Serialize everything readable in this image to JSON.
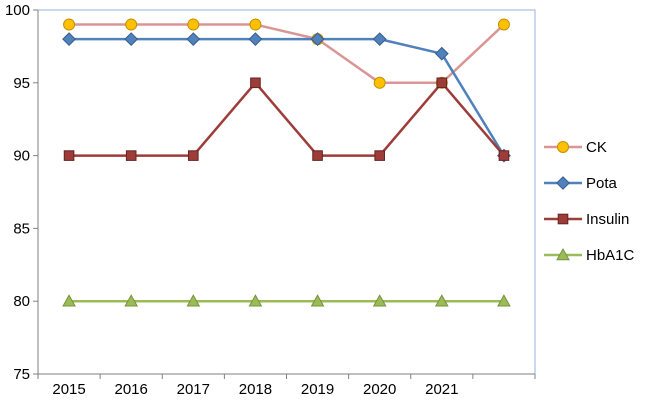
{
  "chart_data": {
    "type": "line",
    "title": "",
    "xlabel": "",
    "ylabel": "",
    "categories": [
      "2015",
      "2016",
      "2017",
      "2018",
      "2019",
      "2020",
      "2021",
      ""
    ],
    "series": [
      {
        "name": "CK",
        "values": [
          99,
          99,
          99,
          99,
          98,
          95,
          95,
          99
        ],
        "line_color": "#d99694",
        "marker": "circle",
        "marker_fill": "#ffc000",
        "marker_stroke": "#bf9000"
      },
      {
        "name": "Pota",
        "values": [
          98,
          98,
          98,
          98,
          98,
          98,
          97,
          90
        ],
        "line_color": "#4f81bd",
        "marker": "diamond",
        "marker_fill": "#4f81bd",
        "marker_stroke": "#385d8a"
      },
      {
        "name": "Insulin",
        "values": [
          90,
          90,
          90,
          95,
          90,
          90,
          95,
          90
        ],
        "line_color": "#9d3c38",
        "marker": "square",
        "marker_fill": "#9d3c38",
        "marker_stroke": "#632423"
      },
      {
        "name": "HbA1C",
        "values": [
          80,
          80,
          80,
          80,
          80,
          80,
          80,
          80
        ],
        "line_color": "#9bbb59",
        "marker": "triangle",
        "marker_fill": "#9bbb59",
        "marker_stroke": "#77933c"
      }
    ],
    "ylim": [
      75,
      100
    ],
    "yticks": [
      75,
      80,
      85,
      90,
      95,
      100
    ],
    "grid": "off",
    "legend_position": "right",
    "plot_border_color": "#95b3d7",
    "axis_color": "#808080"
  }
}
